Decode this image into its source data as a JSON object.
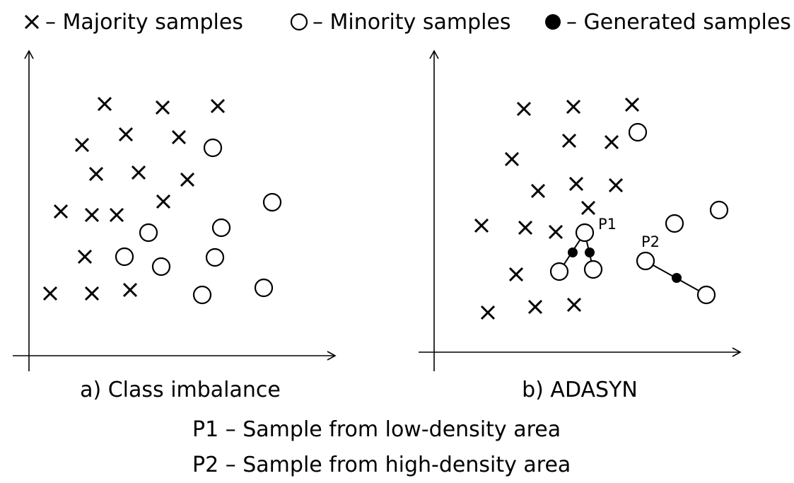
{
  "legend": {
    "majority": "– Majority samples",
    "minority": "– Minority samples",
    "generated": "– Generated samples"
  },
  "panels": [
    {
      "caption": "a) Class imbalance"
    },
    {
      "caption": "b) ADASYN",
      "p1_label": "P1",
      "p2_label": "P2"
    }
  ],
  "footnotes": {
    "p1": "P1 – Sample from low-density area",
    "p2": "P2 – Sample from high-density area"
  },
  "colors": {
    "ink": "#000000",
    "background": "#ffffff"
  }
}
